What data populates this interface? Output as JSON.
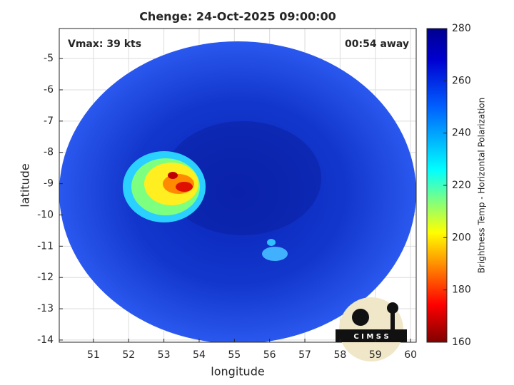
{
  "title": "Chenge: 24-Oct-2025 09:00:00",
  "annotations": {
    "vmax": "Vmax: 39 kts",
    "time_away": "00:54 away"
  },
  "map": {
    "xlabel": "longitude",
    "ylabel": "latitude",
    "xlim": [
      50.03,
      60.16
    ],
    "ylim": [
      -14.07,
      -4.04
    ],
    "xticks": [
      51,
      52,
      53,
      54,
      55,
      56,
      57,
      58,
      59,
      60
    ],
    "yticks": [
      -14,
      -13,
      -12,
      -11,
      -10,
      -9,
      -8,
      -7,
      -6,
      -5
    ],
    "grid": true
  },
  "colorbar": {
    "label": "Brightness Temp - Horizontal Polarization",
    "lim": [
      160,
      280
    ],
    "ticks": [
      160,
      180,
      200,
      220,
      240,
      260,
      280
    ]
  },
  "logo": "C I M S S"
}
